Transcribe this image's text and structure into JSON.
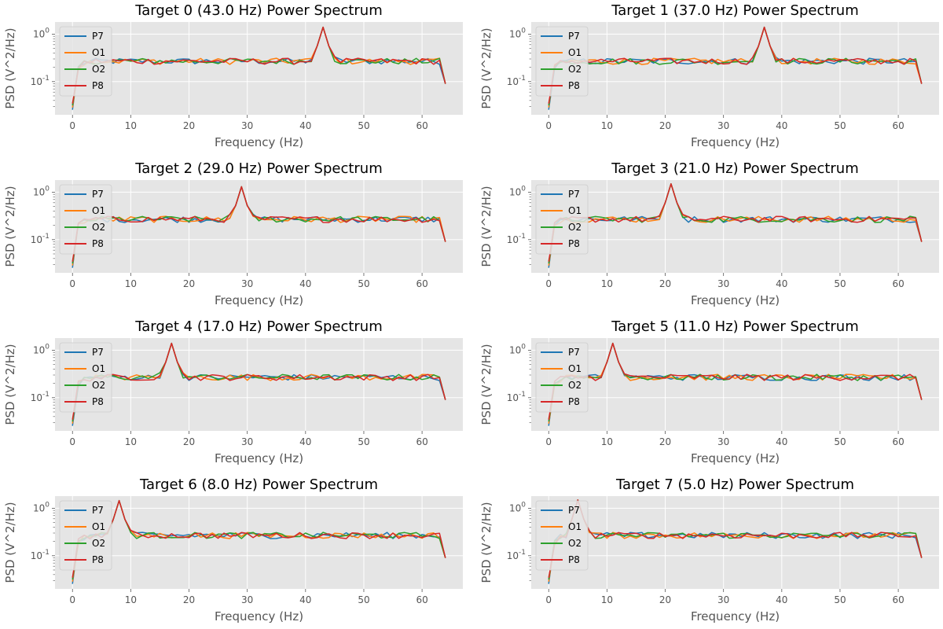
{
  "chart_data": {
    "type": "line",
    "layout": "4x2 grid of subplots",
    "style": "ggplot",
    "xlabel": "Frequency (Hz)",
    "ylabel": "PSD (V^2/Hz)",
    "xlim": [
      -3,
      67
    ],
    "xticks": [
      0,
      10,
      20,
      30,
      40,
      50,
      60
    ],
    "yscale": "log",
    "ylim": [
      0.02,
      1.8
    ],
    "yticks": [
      {
        "value": 1.0,
        "label": "10^0"
      },
      {
        "value": 0.1,
        "label": "10^-1"
      }
    ],
    "grid": true,
    "legend_position": "upper-left",
    "channels": [
      "P7",
      "O1",
      "O2",
      "P8"
    ],
    "channel_colors": [
      "#1f77b4",
      "#ff7f0e",
      "#2ca02c",
      "#d62728"
    ],
    "baseline_psd": 0.27,
    "low_freq_psd": {
      "0": 0.03,
      "1": 0.2,
      "2": 0.25,
      "3": 0.26,
      "4": 0.27
    },
    "high_freq_psd": {
      "63": 0.27,
      "64": 0.09
    },
    "frequency_range": [
      0,
      64
    ],
    "frequency_step": 1,
    "subplots": [
      {
        "title": "Target 0 (43.0 Hz) Power Spectrum",
        "target_hz": 43,
        "peak_psd": 1.4
      },
      {
        "title": "Target 1 (37.0 Hz) Power Spectrum",
        "target_hz": 37,
        "peak_psd": 1.4
      },
      {
        "title": "Target 2 (29.0 Hz) Power Spectrum",
        "target_hz": 29,
        "peak_psd": 1.3
      },
      {
        "title": "Target 3 (21.0 Hz) Power Spectrum",
        "target_hz": 21,
        "peak_psd": 1.5
      },
      {
        "title": "Target 4 (17.0 Hz) Power Spectrum",
        "target_hz": 17,
        "peak_psd": 1.4
      },
      {
        "title": "Target 5 (11.0 Hz) Power Spectrum",
        "target_hz": 11,
        "peak_psd": 1.4
      },
      {
        "title": "Target 6 (8.0 Hz) Power Spectrum",
        "target_hz": 8,
        "peak_psd": 1.45
      },
      {
        "title": "Target 7 (5.0 Hz) Power Spectrum",
        "target_hz": 5,
        "peak_psd": 1.5
      }
    ]
  }
}
